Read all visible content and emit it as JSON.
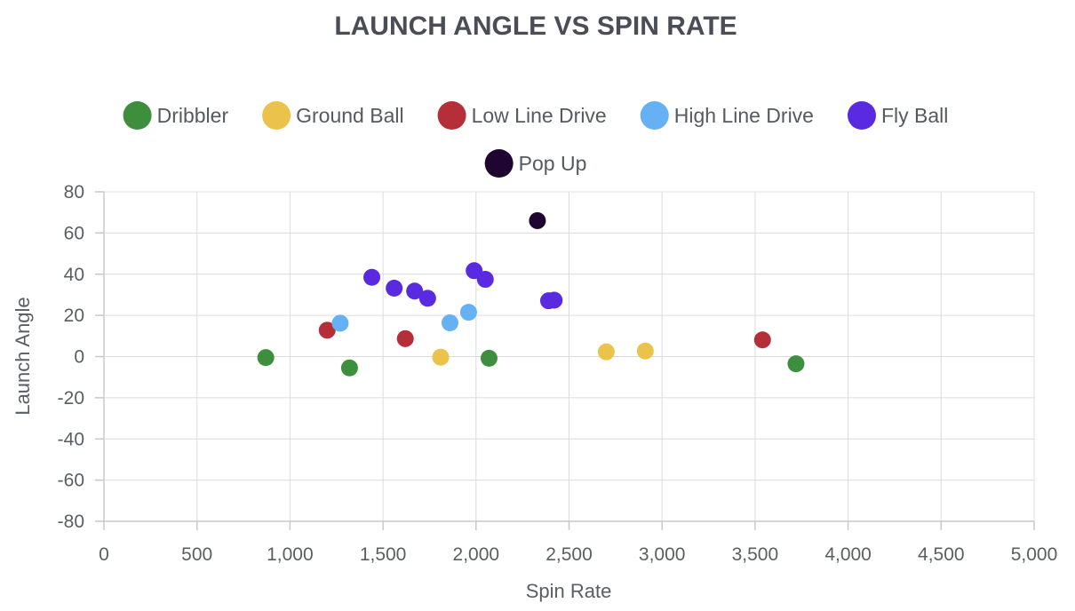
{
  "chart_data": {
    "type": "scatter",
    "title": "LAUNCH ANGLE VS SPIN RATE",
    "xlabel": "Spin Rate",
    "ylabel": "Launch Angle",
    "xlim": [
      0,
      5000
    ],
    "ylim": [
      -80,
      80
    ],
    "x_ticks": [
      "0",
      "500",
      "1,000",
      "1,500",
      "2,000",
      "2,500",
      "3,000",
      "3,500",
      "4,000",
      "4,500",
      "5,000"
    ],
    "y_ticks": [
      "80",
      "60",
      "40",
      "20",
      "0",
      "-20",
      "-40",
      "-60",
      "-80"
    ],
    "grid": true,
    "legend_position": "top",
    "series": [
      {
        "name": "Dribbler",
        "color": "#3d8f3d",
        "points": [
          [
            870,
            -0.5
          ],
          [
            1320,
            -5.5
          ],
          [
            2070,
            -0.8
          ],
          [
            3720,
            -3.5
          ]
        ]
      },
      {
        "name": "Ground Ball",
        "color": "#ecc34a",
        "points": [
          [
            1810,
            -0.3
          ],
          [
            2700,
            2.3
          ],
          [
            2910,
            2.7
          ]
        ]
      },
      {
        "name": "Low Line Drive",
        "color": "#b52e38",
        "points": [
          [
            1200,
            12.8
          ],
          [
            1620,
            8.7
          ],
          [
            3540,
            8.1
          ]
        ]
      },
      {
        "name": "High Line Drive",
        "color": "#65b1f4",
        "points": [
          [
            1270,
            16.2
          ],
          [
            1860,
            16.4
          ],
          [
            1960,
            21.5
          ]
        ]
      },
      {
        "name": "Fly Ball",
        "color": "#5a2ae0",
        "points": [
          [
            1440,
            38.5
          ],
          [
            1560,
            33.2
          ],
          [
            1670,
            31.8
          ],
          [
            1740,
            28.3
          ],
          [
            1990,
            41.7
          ],
          [
            2050,
            37.5
          ],
          [
            2390,
            27.1
          ],
          [
            2420,
            27.4
          ]
        ]
      },
      {
        "name": "Pop Up",
        "color": "#1e0631",
        "points": [
          [
            2330,
            66.0
          ]
        ]
      }
    ]
  }
}
